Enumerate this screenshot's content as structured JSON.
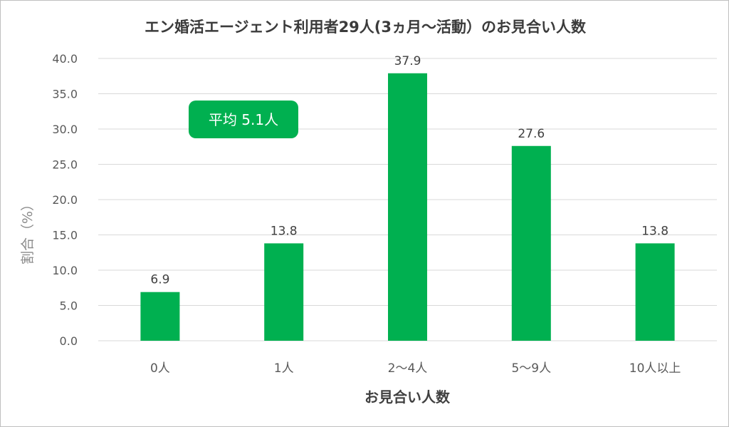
{
  "chart_data": {
    "type": "bar",
    "title": "エン婚活エージェント利用者29人(3ヵ月～活動）のお見合い人数",
    "categories": [
      "0人",
      "1人",
      "2～4人",
      "5～9人",
      "10人以上"
    ],
    "values": [
      6.9,
      13.8,
      37.9,
      27.6,
      13.8
    ],
    "data_labels": [
      "6.9",
      "13.8",
      "37.9",
      "27.6",
      "13.8"
    ],
    "xlabel": "お見合い人数",
    "ylabel": "割合（%）",
    "ylim": [
      0,
      40
    ],
    "yticks": [
      "0.0",
      "5.0",
      "10.0",
      "15.0",
      "20.0",
      "25.0",
      "30.0",
      "35.0",
      "40.0"
    ],
    "grid": true,
    "legend": "none",
    "annotation": "平均 5.1人",
    "colors": {
      "bar": "#00b050",
      "badge": "#00b050",
      "grid": "#d9d9d9"
    }
  }
}
